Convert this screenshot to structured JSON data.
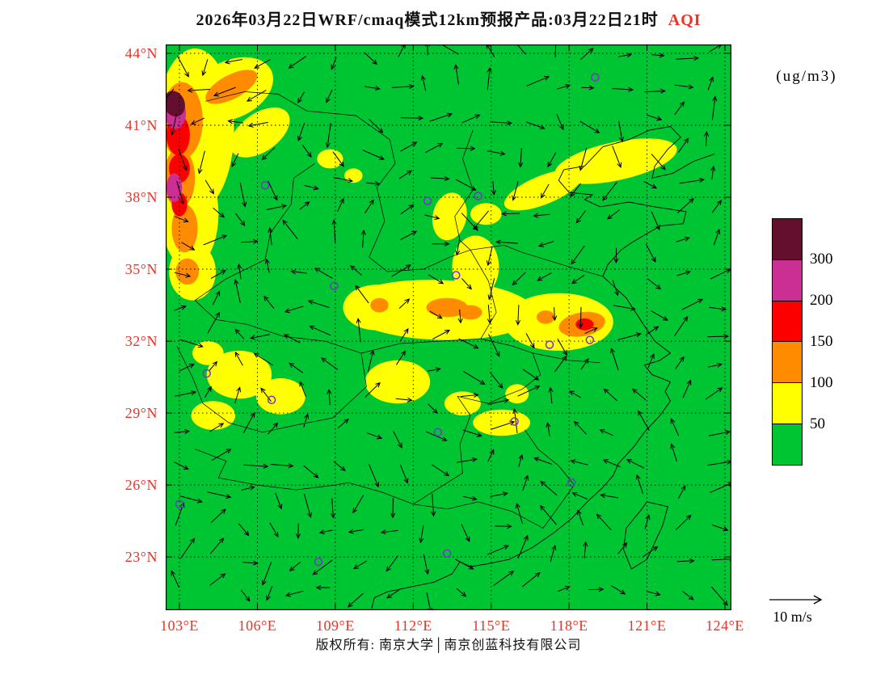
{
  "title": {
    "prefix": "2026年03月22日WRF/cmaq模式12km预报产品:03月22日21时",
    "species": "AQI"
  },
  "units_label": "(ug/m3)",
  "colors": {
    "accent_red": "#ee3124",
    "map_green": "#00c532"
  },
  "axes": {
    "lat_labels": [
      "44°N",
      "41°N",
      "38°N",
      "35°N",
      "32°N",
      "29°N",
      "26°N",
      "23°N"
    ],
    "lat_values": [
      44,
      41,
      38,
      35,
      32,
      29,
      26,
      23
    ],
    "lon_labels": [
      "103°E",
      "106°E",
      "109°E",
      "112°E",
      "115°E",
      "118°E",
      "121°E",
      "124°E"
    ],
    "lon_values": [
      103,
      106,
      109,
      112,
      115,
      118,
      121,
      124
    ],
    "label_color": "#ee3124"
  },
  "colorbar": {
    "labels": [
      "300",
      "200",
      "150",
      "100",
      "50"
    ],
    "colors_top_to_bottom": [
      "#640f2d",
      "#cb2f93",
      "#fc0000",
      "#ff8c00",
      "#ffff00",
      "#00c532"
    ]
  },
  "wind_scale": {
    "label": "10 m/s"
  },
  "footer": {
    "copyright": "版权所有: 南京大学│南京创蓝科技有限公司"
  },
  "chart_data": {
    "type": "heatmap",
    "title": "2026年03月22日WRF/cmaq模式12km预报产品:03月22日21时 AQI",
    "variable": "AQI",
    "units": "ug/m3",
    "projection_extent": {
      "lon": [
        102.47,
        124.25
      ],
      "lat": [
        20.78,
        44.37
      ]
    },
    "grid_interval_deg": 3,
    "levels": [
      {
        "min": 0,
        "max": 50,
        "color": "#00c532"
      },
      {
        "min": 50,
        "max": 100,
        "color": "#ffff00"
      },
      {
        "min": 100,
        "max": 150,
        "color": "#ff8c00"
      },
      {
        "min": 150,
        "max": 200,
        "color": "#fc0000"
      },
      {
        "min": 200,
        "max": 300,
        "color": "#cb2f93"
      },
      {
        "min": 300,
        "max": 500,
        "color": "#640f2d"
      }
    ],
    "background_level": "0-50",
    "region_level_order": [
      "50-100",
      "100-150",
      "150-200",
      "200-300",
      "300+"
    ],
    "regions": {
      "50-100": [
        [
          103.6,
          40.8,
          1.5,
          3.4,
          0
        ],
        [
          105.0,
          42.5,
          1.7,
          1.2,
          -25
        ],
        [
          103.4,
          37.3,
          1.1,
          2.3,
          0
        ],
        [
          103.5,
          34.9,
          0.9,
          1.2,
          0
        ],
        [
          106.1,
          40.7,
          1.3,
          0.8,
          -35
        ],
        [
          108.8,
          39.6,
          0.5,
          0.4,
          0
        ],
        [
          109.7,
          38.9,
          0.35,
          0.3,
          0
        ],
        [
          119.8,
          39.5,
          2.4,
          0.8,
          -12
        ],
        [
          117.0,
          38.3,
          1.6,
          0.6,
          -22
        ],
        [
          114.8,
          37.3,
          0.6,
          0.45,
          0
        ],
        [
          113.4,
          37.2,
          0.65,
          1.0,
          12
        ],
        [
          113.0,
          33.3,
          3.7,
          1.25,
          2
        ],
        [
          117.6,
          32.8,
          2.1,
          1.2,
          0
        ],
        [
          110.6,
          33.4,
          1.3,
          0.95,
          0
        ],
        [
          114.4,
          35.1,
          0.9,
          1.3,
          0
        ],
        [
          111.4,
          30.3,
          1.25,
          0.9,
          0
        ],
        [
          105.3,
          30.6,
          1.25,
          1.0,
          0
        ],
        [
          106.9,
          29.7,
          0.95,
          0.75,
          0
        ],
        [
          104.3,
          28.9,
          0.85,
          0.6,
          0
        ],
        [
          104.1,
          31.5,
          0.6,
          0.5,
          0
        ],
        [
          113.9,
          29.4,
          0.7,
          0.5,
          0
        ],
        [
          115.4,
          28.6,
          1.1,
          0.55,
          0
        ],
        [
          116.0,
          29.8,
          0.45,
          0.4,
          0
        ]
      ],
      "100-150": [
        [
          103.1,
          41.2,
          0.8,
          1.6,
          0
        ],
        [
          105.0,
          42.6,
          1.1,
          0.5,
          -28
        ],
        [
          103.0,
          38.8,
          0.6,
          1.25,
          0
        ],
        [
          103.2,
          36.7,
          0.5,
          1.0,
          0
        ],
        [
          103.3,
          34.9,
          0.45,
          0.55,
          0
        ],
        [
          113.3,
          33.4,
          0.8,
          0.4,
          0
        ],
        [
          114.2,
          33.2,
          0.45,
          0.3,
          0
        ],
        [
          118.5,
          32.7,
          0.9,
          0.5,
          -10
        ],
        [
          117.1,
          33.0,
          0.35,
          0.28,
          0
        ],
        [
          110.7,
          33.5,
          0.35,
          0.3,
          0
        ]
      ],
      "150-200": [
        [
          102.95,
          40.6,
          0.45,
          0.85,
          0
        ],
        [
          103.0,
          39.2,
          0.4,
          0.6,
          0
        ],
        [
          103.0,
          37.7,
          0.3,
          0.5,
          0
        ],
        [
          118.6,
          32.7,
          0.35,
          0.25,
          0
        ]
      ],
      "200-300": [
        [
          102.85,
          41.5,
          0.4,
          0.65,
          0
        ],
        [
          102.8,
          38.4,
          0.3,
          0.6,
          0
        ]
      ],
      "300+": [
        [
          102.8,
          41.9,
          0.4,
          0.55,
          -20
        ]
      ]
    },
    "city_marker_color": "#7733cc",
    "city_markers": [
      [
        119.0,
        43.0
      ],
      [
        106.3,
        38.5
      ],
      [
        112.55,
        37.85
      ],
      [
        114.5,
        38.05
      ],
      [
        108.95,
        34.3
      ],
      [
        113.65,
        34.75
      ],
      [
        117.25,
        31.85
      ],
      [
        118.8,
        32.05
      ],
      [
        106.55,
        29.55
      ],
      [
        104.05,
        30.65
      ],
      [
        112.95,
        28.2
      ],
      [
        115.9,
        28.65
      ],
      [
        118.1,
        26.1
      ],
      [
        103.0,
        25.2
      ],
      [
        108.35,
        22.8
      ],
      [
        113.3,
        23.15
      ]
    ],
    "wind": {
      "scale_label": "10 m/s"
    }
  }
}
